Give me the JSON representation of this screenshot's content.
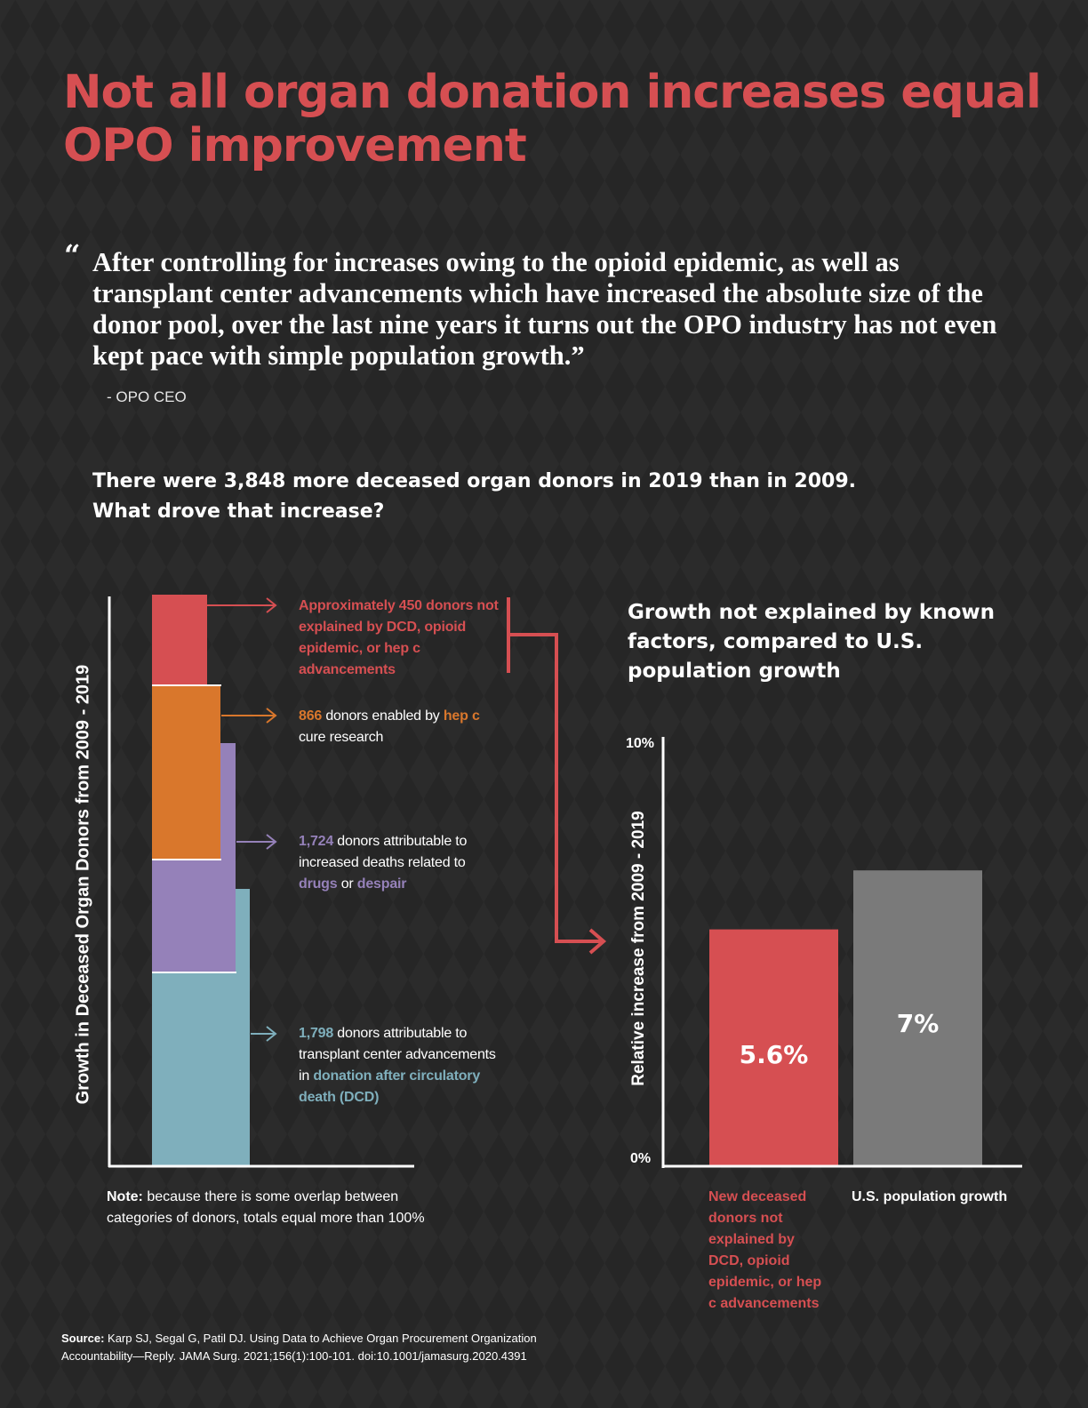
{
  "title": "Not all organ donation increases equal OPO improvement",
  "quote": {
    "mark": "“",
    "text": "After controlling for increases owing to the opioid epidemic, as well as transplant center advancements which have increased the absolute size of the donor pool, over the last nine years it turns out the OPO industry has not even kept pace with simple population growth.”",
    "attribution": "- OPO CEO"
  },
  "lead": {
    "line1": "There were 3,848 more deceased organ donors in 2019 than in 2009.",
    "line2": "What drove that increase?"
  },
  "colors": {
    "red": "#d64f52",
    "orange": "#d9772c",
    "purple": "#9581b9",
    "teal": "#7fafbc",
    "gray": "#7a7a7a",
    "background": "#262626"
  },
  "chart_data": [
    {
      "type": "bar",
      "stacked": true,
      "ylabel": "Growth in Deceased Organ Donors from 2009 - 2019",
      "series": [
        {
          "name": "transplant center advancements in donation after circulatory death (DCD)",
          "value": 1798,
          "color": "#7fafbc"
        },
        {
          "name": "increased deaths related to drugs or despair",
          "value": 1724,
          "color": "#9581b9"
        },
        {
          "name": "hep c cure research",
          "value": 866,
          "color": "#d9772c"
        },
        {
          "name": "not explained by DCD, opioid epidemic, or hep c advancements",
          "value": 450,
          "color": "#d64f52"
        }
      ],
      "annotations": {
        "red": {
          "text": "Approximately 450 donors not explained by DCD, opioid epidemic, or hep c advancements"
        },
        "orange": {
          "num": "866",
          "t1": " donors enabled by ",
          "hl": "hep c",
          "t2": " cure research"
        },
        "purple": {
          "num": "1,724",
          "t1": " donors attributable to increased deaths related to ",
          "hl1": "drugs",
          "t2": " or ",
          "hl2": "despair"
        },
        "teal": {
          "num": "1,798",
          "t1": " donors attributable to transplant center advancements in ",
          "hl": "donation after circulatory death (DCD)"
        }
      },
      "note": {
        "label": "Note:",
        "text": " because there is some overlap between categories of donors, totals equal more than 100%"
      }
    },
    {
      "type": "bar",
      "title": "Growth not explained by known factors, compared to U.S. population growth",
      "ylabel": "Relative increase from 2009 - 2019",
      "ylim": [
        0,
        10
      ],
      "ytick_labels": [
        "10%",
        "0%"
      ],
      "categories": [
        "New deceased donors not explained by DCD, opioid epidemic, or hep c advancements",
        "U.S. population growth"
      ],
      "values": [
        5.6,
        7
      ],
      "value_labels": [
        "5.6%",
        "7%"
      ],
      "bar_colors": [
        "#d64f52",
        "#7a7a7a"
      ]
    }
  ],
  "source": {
    "label": "Source:",
    "text": " Karp SJ, Segal G, Patil DJ. Using Data to Achieve Organ Procurement Organization Accountability—Reply. JAMA Surg. 2021;156(1):100-101. doi:10.1001/jamasurg.2020.4391"
  }
}
